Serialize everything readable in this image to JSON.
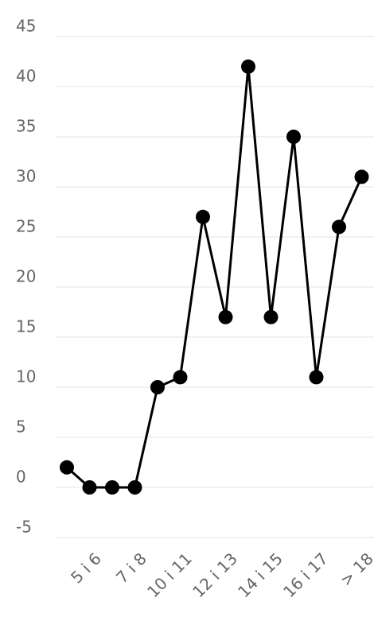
{
  "chart_data": {
    "type": "line",
    "categories": [
      null,
      "5 i 6",
      null,
      "7 i 8",
      null,
      "10 i 11",
      null,
      "12 i 13",
      null,
      "14 i 15",
      null,
      "16 i 17",
      null,
      "> 18"
    ],
    "values": [
      2,
      0,
      0,
      0,
      10,
      11,
      27,
      17,
      42,
      17,
      35,
      11,
      26,
      31
    ],
    "color": "#000000",
    "ylim": [
      -5,
      45
    ],
    "yticks": [
      -5,
      0,
      5,
      10,
      15,
      20,
      25,
      30,
      35,
      40,
      45
    ],
    "grid": true
  }
}
